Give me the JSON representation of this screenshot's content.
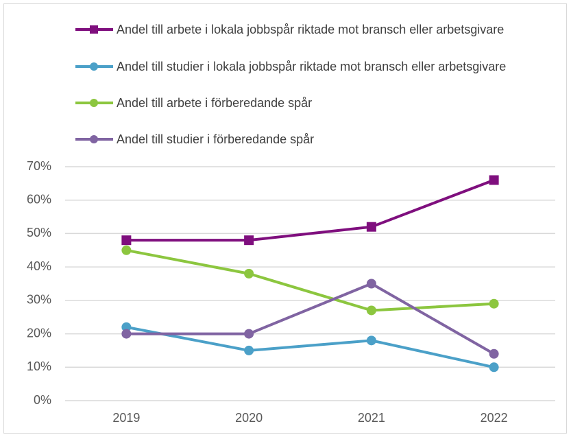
{
  "chart_data": {
    "type": "line",
    "categories": [
      "2019",
      "2020",
      "2021",
      "2022"
    ],
    "series": [
      {
        "name": "Andel till arbete i lokala jobbspår riktade mot bransch eller arbetsgivare",
        "color": "#7f0f7e",
        "marker": "square",
        "values": [
          48,
          48,
          52,
          66
        ]
      },
      {
        "name": "Andel till studier i lokala jobbspår riktade mot bransch eller arbetsgivare",
        "color": "#4ba0c8",
        "marker": "circle",
        "values": [
          22,
          15,
          18,
          10
        ]
      },
      {
        "name": "Andel till arbete i förberedande spår",
        "color": "#8cc63f",
        "marker": "circle",
        "values": [
          45,
          38,
          27,
          29
        ]
      },
      {
        "name": "Andel till studier i förberedande spår",
        "color": "#8064a2",
        "marker": "circle",
        "values": [
          20,
          20,
          35,
          14
        ]
      }
    ],
    "ylim": [
      0,
      70
    ],
    "yticks": [
      {
        "value": 0,
        "label": "0%"
      },
      {
        "value": 10,
        "label": "10%"
      },
      {
        "value": 20,
        "label": "20%"
      },
      {
        "value": 30,
        "label": "30%"
      },
      {
        "value": 40,
        "label": "40%"
      },
      {
        "value": 50,
        "label": "50%"
      },
      {
        "value": 60,
        "label": "60%"
      },
      {
        "value": 70,
        "label": "70%"
      }
    ],
    "grid": true
  }
}
